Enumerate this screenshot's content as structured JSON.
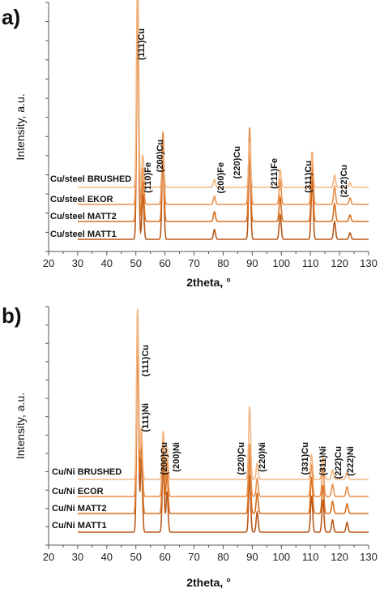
{
  "panels": [
    {
      "label": "a)",
      "ylabel": "Intensity, a.u.",
      "xlabel": "2theta, °",
      "chart_data": {
        "type": "line",
        "xlim": [
          20,
          130
        ],
        "xticks": [
          20,
          30,
          40,
          50,
          60,
          70,
          80,
          90,
          100,
          110,
          120,
          130
        ],
        "y_tick_count": 14,
        "grid": false,
        "series": [
          {
            "name": "Cu/steel MATT1",
            "color": "#b8591b",
            "peaks": [
              [
                50.6,
                285
              ],
              [
                52.4,
                55
              ],
              [
                59.3,
                105
              ],
              [
                77.0,
                12
              ],
              [
                89.1,
                110
              ],
              [
                99.6,
                30
              ],
              [
                110.6,
                75
              ],
              [
                118.3,
                22
              ],
              [
                123.6,
                8
              ]
            ]
          },
          {
            "name": "Cu/steel MATT2",
            "color": "#d9701f",
            "peaks": [
              [
                50.6,
                280
              ],
              [
                52.4,
                50
              ],
              [
                59.3,
                95
              ],
              [
                77.0,
                12
              ],
              [
                89.1,
                100
              ],
              [
                99.6,
                30
              ],
              [
                110.6,
                70
              ],
              [
                118.3,
                22
              ],
              [
                123.6,
                8
              ]
            ]
          },
          {
            "name": "Cu/steel EKOR",
            "color": "#e8914e",
            "peaks": [
              [
                50.6,
                275
              ],
              [
                52.4,
                45
              ],
              [
                59.3,
                90
              ],
              [
                77.0,
                10
              ],
              [
                89.1,
                95
              ],
              [
                99.6,
                30
              ],
              [
                110.6,
                65
              ],
              [
                118.3,
                22
              ],
              [
                123.6,
                8
              ]
            ]
          },
          {
            "name": "Cu/steel BRUSHED",
            "color": "#f3b784",
            "peaks": [
              [
                50.6,
                280
              ],
              [
                52.4,
                40
              ],
              [
                59.3,
                44
              ],
              [
                77.0,
                10
              ],
              [
                89.1,
                56
              ],
              [
                99.6,
                22
              ],
              [
                110.6,
                40
              ],
              [
                118.3,
                15
              ],
              [
                123.6,
                6
              ]
            ]
          }
        ],
        "annotations": [
          {
            "text": "(111)Cu",
            "x": 50.6
          },
          {
            "text": "(110)Fe",
            "x": 52.4
          },
          {
            "text": "(200)Cu",
            "x": 59.3
          },
          {
            "text": "(200)Fe",
            "x": 77.0
          },
          {
            "text": "(220)Cu",
            "x": 89.1
          },
          {
            "text": "(211)Fe",
            "x": 99.6
          },
          {
            "text": "(311)Cu",
            "x": 110.6
          },
          {
            "text": "(222)Cu",
            "x": 118.3
          }
        ]
      }
    },
    {
      "label": "b)",
      "ylabel": "Intensity, a.u.",
      "xlabel": "2theta, °",
      "chart_data": {
        "type": "line",
        "xlim": [
          20,
          130
        ],
        "xticks": [
          20,
          30,
          40,
          50,
          60,
          70,
          80,
          90,
          100,
          110,
          120,
          130
        ],
        "y_tick_count": 14,
        "grid": false,
        "series": [
          {
            "name": "Cu/Ni MATT1",
            "color": "#b8591b",
            "peaks": [
              [
                50.6,
                240
              ],
              [
                51.9,
                90
              ],
              [
                59.4,
                85
              ],
              [
                60.7,
                50
              ],
              [
                89.1,
                70
              ],
              [
                91.7,
                25
              ],
              [
                110.4,
                45
              ],
              [
                114.3,
                40
              ],
              [
                117.6,
                15
              ],
              [
                122.6,
                12
              ]
            ]
          },
          {
            "name": "Cu/Ni MATT2",
            "color": "#d9701f",
            "peaks": [
              [
                50.6,
                235
              ],
              [
                51.9,
                90
              ],
              [
                59.4,
                85
              ],
              [
                60.7,
                50
              ],
              [
                89.1,
                70
              ],
              [
                91.7,
                25
              ],
              [
                110.4,
                45
              ],
              [
                114.3,
                35
              ],
              [
                117.6,
                15
              ],
              [
                122.6,
                12
              ]
            ]
          },
          {
            "name": "Cu/Ni ECOR",
            "color": "#e8914e",
            "peaks": [
              [
                50.6,
                230
              ],
              [
                51.9,
                85
              ],
              [
                59.4,
                80
              ],
              [
                60.7,
                45
              ],
              [
                89.1,
                65
              ],
              [
                91.7,
                22
              ],
              [
                110.4,
                40
              ],
              [
                114.3,
                35
              ],
              [
                117.6,
                15
              ],
              [
                122.6,
                12
              ]
            ]
          },
          {
            "name": "Cu/Ni BRUSHED",
            "color": "#f3b784",
            "peaks": [
              [
                50.6,
                210
              ],
              [
                51.9,
                60
              ],
              [
                59.4,
                60
              ],
              [
                60.7,
                40
              ],
              [
                89.1,
                90
              ],
              [
                91.7,
                20
              ],
              [
                110.4,
                30
              ],
              [
                114.3,
                28
              ],
              [
                117.6,
                12
              ],
              [
                122.6,
                10
              ]
            ]
          }
        ],
        "annotations": [
          {
            "text": "(111)Cu",
            "x": 50.6
          },
          {
            "text": "(111)Ni",
            "x": 51.9
          },
          {
            "text": "(200)Cu",
            "x": 59.4
          },
          {
            "text": "(200)Ni",
            "x": 60.7
          },
          {
            "text": "(220)Cu",
            "x": 89.1
          },
          {
            "text": "(220)Ni",
            "x": 91.7
          },
          {
            "text": "(331)Cu",
            "x": 110.4
          },
          {
            "text": "(311)Ni",
            "x": 114.3
          },
          {
            "text": "(222)Cu",
            "x": 117.6
          },
          {
            "text": "(222)Ni",
            "x": 122.6
          }
        ]
      }
    }
  ]
}
